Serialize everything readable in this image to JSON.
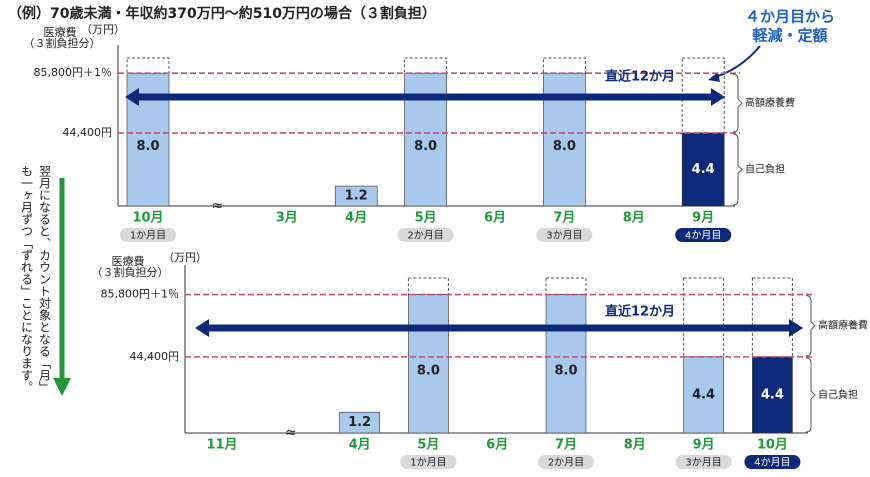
{
  "title": "（例）70歳未満・年収約370万円～約510万円の場合（３割負担）",
  "callout": [
    "４か月目から",
    "軽減・定額"
  ],
  "side_note": [
    "翌月になると、カウント対象となる「月」",
    "も一ヶ月ずつ「ずれる」ことになります。"
  ],
  "chart_data": [
    {
      "type": "bar",
      "y_label": [
        "医療費",
        "（３割負担分）"
      ],
      "unit": "（万円）",
      "ylim": [
        0,
        10
      ],
      "categories": [
        "10月",
        null,
        "3月",
        "4月",
        "5月",
        "6月",
        "7月",
        "8月",
        "9月"
      ],
      "values": [
        8.0,
        null,
        null,
        1.2,
        8.0,
        null,
        8.0,
        null,
        4.4
      ],
      "value_labels": [
        "8.0",
        null,
        null,
        "1.2",
        "8.0",
        null,
        "8.0",
        null,
        "4.4"
      ],
      "colors": [
        "#a9c9ec",
        null,
        null,
        "#a9c9ec",
        "#a9c9ec",
        null,
        "#a9c9ec",
        null,
        "#0d2a7a"
      ],
      "badges": [
        "1か月目",
        null,
        null,
        null,
        "2か月目",
        null,
        "3か月目",
        null,
        "4か月目"
      ],
      "reference_lines": [
        {
          "label": "85,800円＋1％",
          "value": 8.0
        },
        {
          "label": "44,400円",
          "value": 4.4
        }
      ],
      "range_label": "直近12か月",
      "brace_labels": [
        "高額療養費",
        "自己負担"
      ]
    },
    {
      "type": "bar",
      "y_label": [
        "医療費",
        "（３割負担分）"
      ],
      "unit": "（万円）",
      "ylim": [
        0,
        10
      ],
      "categories": [
        "11月",
        null,
        "4月",
        "5月",
        "6月",
        "7月",
        "8月",
        "9月",
        "10月"
      ],
      "values": [
        null,
        null,
        1.2,
        8.0,
        null,
        8.0,
        null,
        4.4,
        4.4
      ],
      "value_labels": [
        null,
        null,
        "1.2",
        "8.0",
        null,
        "8.0",
        null,
        "4.4",
        "4.4"
      ],
      "colors": [
        null,
        null,
        "#a9c9ec",
        "#a9c9ec",
        null,
        "#a9c9ec",
        null,
        "#a9c9ec",
        "#0d2a7a"
      ],
      "badges": [
        null,
        null,
        null,
        "1か月目",
        null,
        "2か月目",
        null,
        "3か月目",
        "4か月目"
      ],
      "reference_lines": [
        {
          "label": "85,800円＋1％",
          "value": 8.0
        },
        {
          "label": "44,400円",
          "value": 4.4
        }
      ],
      "range_label": "直近12か月",
      "brace_labels": [
        "高額療養費",
        "自己負担"
      ]
    }
  ]
}
